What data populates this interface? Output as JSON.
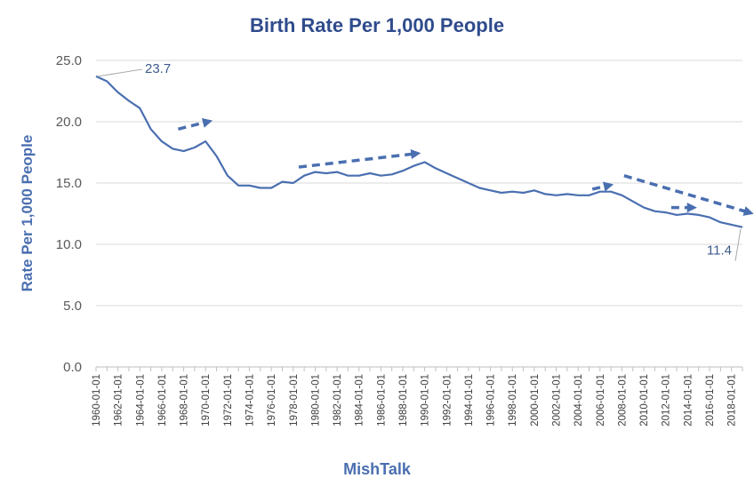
{
  "chart_data": {
    "type": "line",
    "title": "Birth Rate Per 1,000 People",
    "ylabel": "Rate Per 1,000 People",
    "xlabel": "MishTalk",
    "ylim": [
      0,
      25
    ],
    "yticks": [
      "0.0",
      "5.0",
      "10.0",
      "15.0",
      "20.0",
      "25.0"
    ],
    "grid": true,
    "x_start_year": 1960,
    "x_end_year": 2019,
    "x_tick_labels": [
      "1960-01-01",
      "1962-01-01",
      "1964-01-01",
      "1966-01-01",
      "1968-01-01",
      "1970-01-01",
      "1972-01-01",
      "1974-01-01",
      "1976-01-01",
      "1978-01-01",
      "1980-01-01",
      "1982-01-01",
      "1984-01-01",
      "1986-01-01",
      "1988-01-01",
      "1990-01-01",
      "1992-01-01",
      "1994-01-01",
      "1996-01-01",
      "1998-01-01",
      "2000-01-01",
      "2002-01-01",
      "2004-01-01",
      "2006-01-01",
      "2008-01-01",
      "2010-01-01",
      "2012-01-01",
      "2014-01-01",
      "2016-01-01",
      "2018-01-01"
    ],
    "series": [
      {
        "color": "#4A6FB0",
        "x": [
          1960,
          1961,
          1962,
          1963,
          1964,
          1965,
          1966,
          1967,
          1968,
          1969,
          1970,
          1971,
          1972,
          1973,
          1974,
          1975,
          1976,
          1977,
          1978,
          1979,
          1980,
          1981,
          1982,
          1983,
          1984,
          1985,
          1986,
          1987,
          1988,
          1989,
          1990,
          1991,
          1992,
          1993,
          1994,
          1995,
          1996,
          1997,
          1998,
          1999,
          2000,
          2001,
          2002,
          2003,
          2004,
          2005,
          2006,
          2007,
          2008,
          2009,
          2010,
          2011,
          2012,
          2013,
          2014,
          2015,
          2016,
          2017,
          2018,
          2019
        ],
        "values": [
          23.7,
          23.3,
          22.4,
          21.7,
          21.1,
          19.4,
          18.4,
          17.8,
          17.6,
          17.9,
          18.4,
          17.2,
          15.6,
          14.8,
          14.8,
          14.6,
          14.6,
          15.1,
          15.0,
          15.6,
          15.9,
          15.8,
          15.9,
          15.6,
          15.6,
          15.8,
          15.6,
          15.7,
          16.0,
          16.4,
          16.7,
          16.2,
          15.8,
          15.4,
          15.0,
          14.6,
          14.4,
          14.2,
          14.3,
          14.2,
          14.4,
          14.1,
          14.0,
          14.1,
          14.0,
          14.0,
          14.3,
          14.3,
          14.0,
          13.5,
          13.0,
          12.7,
          12.6,
          12.4,
          12.5,
          12.4,
          12.2,
          11.8,
          11.6,
          11.4
        ]
      }
    ],
    "annotations": [
      {
        "text": "23.7",
        "year": 1960,
        "value": 23.7
      },
      {
        "text": "11.4",
        "year": 2019,
        "value": 11.4
      }
    ],
    "trend_arrows": [
      {
        "from_year": 1967.5,
        "from_value": 19.4,
        "to_year": 1970.2,
        "to_value": 20.0
      },
      {
        "from_year": 1978.5,
        "from_value": 16.3,
        "to_year": 1989.2,
        "to_value": 17.4
      },
      {
        "from_year": 2005.3,
        "from_value": 14.5,
        "to_year": 2006.8,
        "to_value": 14.8
      },
      {
        "from_year": 2008.2,
        "from_value": 15.6,
        "to_year": 2019.6,
        "to_value": 12.6
      },
      {
        "from_year": 2012.5,
        "from_value": 13.0,
        "to_year": 2014.4,
        "to_value": 13.0
      }
    ]
  }
}
